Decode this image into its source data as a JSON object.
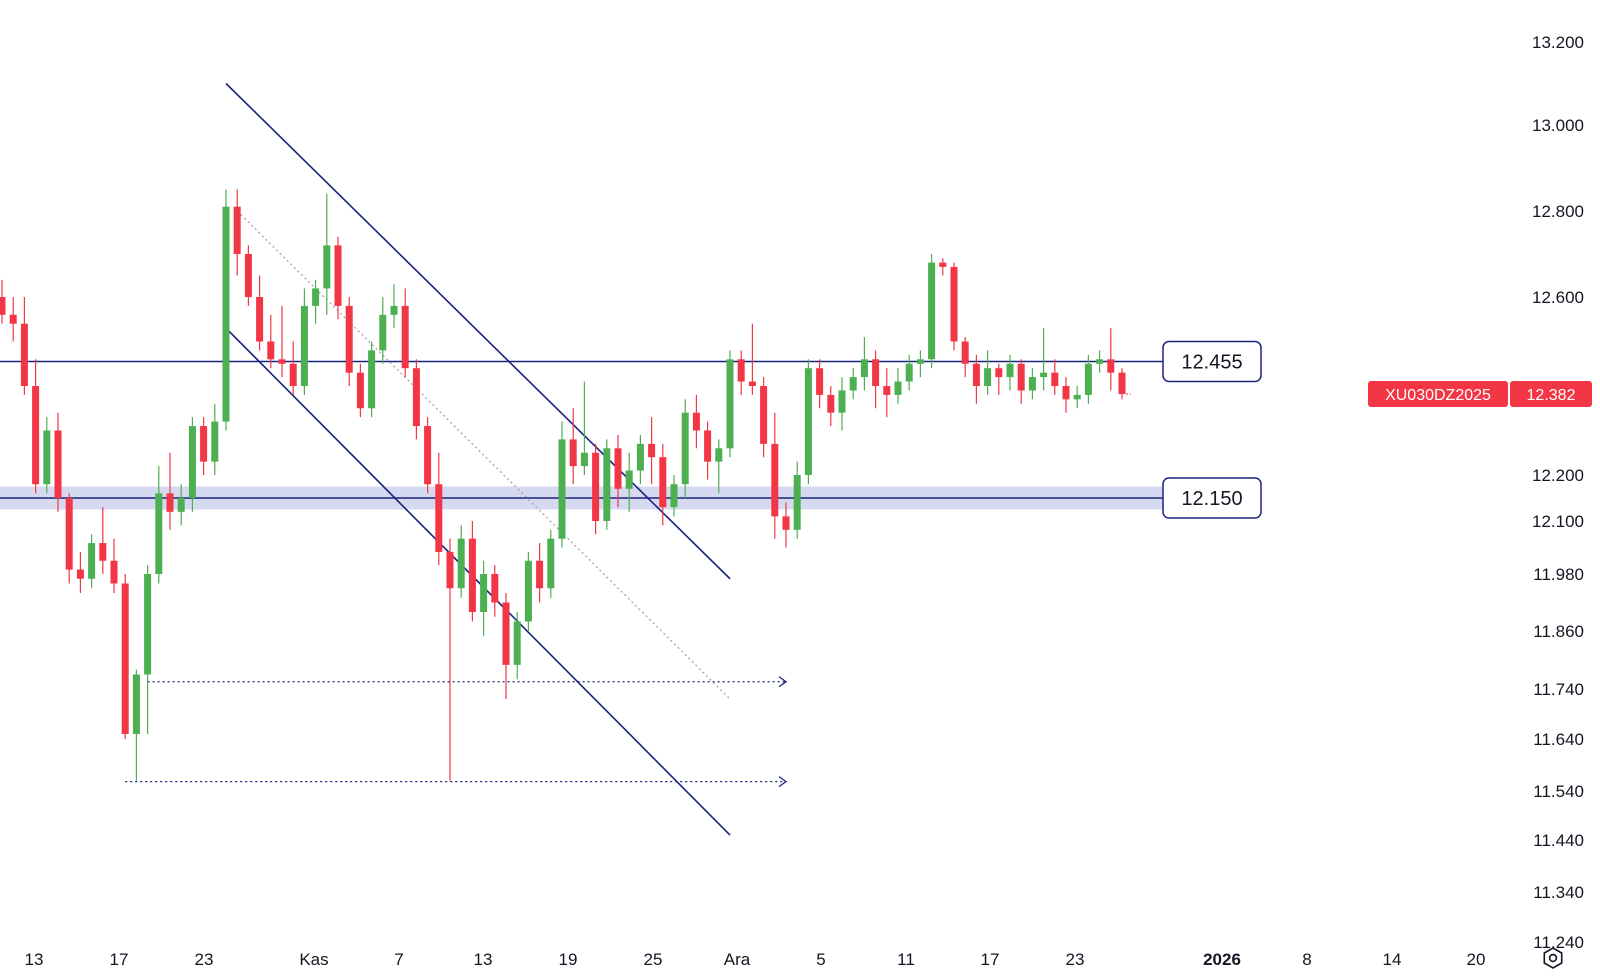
{
  "chart_data": {
    "type": "candlestick",
    "symbol": "XU030DZ2025",
    "last_price_label": "12.382",
    "last_price": 12382,
    "colors": {
      "up": "#4caf50",
      "down": "#f23645",
      "line": "#1a237e",
      "zone": "#c5cae9",
      "tag_bg": "#f23645"
    },
    "y_axis": {
      "ticks": [
        {
          "label": "13.200",
          "value": 13200
        },
        {
          "label": "13.000",
          "value": 13000
        },
        {
          "label": "12.800",
          "value": 12800
        },
        {
          "label": "12.600",
          "value": 12600
        },
        {
          "label": "12.200",
          "value": 12200
        },
        {
          "label": "12.100",
          "value": 12100
        },
        {
          "label": "11.980",
          "value": 11980
        },
        {
          "label": "11.860",
          "value": 11860
        },
        {
          "label": "11.740",
          "value": 11740
        },
        {
          "label": "11.640",
          "value": 11640
        },
        {
          "label": "11.540",
          "value": 11540
        },
        {
          "label": "11.440",
          "value": 11440
        },
        {
          "label": "11.340",
          "value": 11340
        },
        {
          "label": "11.240",
          "value": 11240
        }
      ]
    },
    "x_axis": {
      "ticks": [
        {
          "label": "13",
          "bold": false
        },
        {
          "label": "17",
          "bold": false
        },
        {
          "label": "23",
          "bold": false
        },
        {
          "label": "Kas",
          "bold": false
        },
        {
          "label": "7",
          "bold": false
        },
        {
          "label": "13",
          "bold": false
        },
        {
          "label": "19",
          "bold": false
        },
        {
          "label": "25",
          "bold": false
        },
        {
          "label": "Ara",
          "bold": false
        },
        {
          "label": "5",
          "bold": false
        },
        {
          "label": "11",
          "bold": false
        },
        {
          "label": "17",
          "bold": false
        },
        {
          "label": "23",
          "bold": false
        },
        {
          "label": "2026",
          "bold": true
        },
        {
          "label": "8",
          "bold": false
        },
        {
          "label": "14",
          "bold": false
        },
        {
          "label": "20",
          "bold": false
        }
      ]
    },
    "horizontal_levels": [
      {
        "label": "12.455",
        "value": 12455,
        "zone": false
      },
      {
        "label": "12.150",
        "value": 12150,
        "zone": true,
        "zone_low": 12125,
        "zone_high": 12175
      }
    ],
    "candles": [
      [
        12600,
        12640,
        12540,
        12560
      ],
      [
        12560,
        12600,
        12500,
        12540
      ],
      [
        12540,
        12600,
        12380,
        12400
      ],
      [
        12400,
        12460,
        12160,
        12180
      ],
      [
        12180,
        12330,
        12160,
        12300
      ],
      [
        12300,
        12340,
        12120,
        12150
      ],
      [
        12150,
        12160,
        11960,
        11990
      ],
      [
        11990,
        12030,
        11940,
        11970
      ],
      [
        11970,
        12070,
        11950,
        12050
      ],
      [
        12050,
        12130,
        11980,
        12010
      ],
      [
        12010,
        12060,
        11940,
        11960
      ],
      [
        11960,
        11980,
        11640,
        11650
      ],
      [
        11650,
        11780,
        11560,
        11770
      ],
      [
        11770,
        12000,
        11650,
        11980
      ],
      [
        11980,
        12220,
        11960,
        12160
      ],
      [
        12160,
        12250,
        12080,
        12120
      ],
      [
        12120,
        12180,
        12090,
        12150
      ],
      [
        12150,
        12330,
        12120,
        12310
      ],
      [
        12310,
        12330,
        12200,
        12230
      ],
      [
        12230,
        12360,
        12200,
        12320
      ],
      [
        12320,
        12850,
        12300,
        12810
      ],
      [
        12810,
        12850,
        12650,
        12700
      ],
      [
        12700,
        12720,
        12580,
        12600
      ],
      [
        12600,
        12650,
        12480,
        12500
      ],
      [
        12500,
        12560,
        12440,
        12460
      ],
      [
        12460,
        12580,
        12420,
        12450
      ],
      [
        12450,
        12500,
        12380,
        12400
      ],
      [
        12400,
        12620,
        12380,
        12580
      ],
      [
        12580,
        12640,
        12540,
        12620
      ],
      [
        12620,
        12840,
        12560,
        12720
      ],
      [
        12720,
        12740,
        12550,
        12580
      ],
      [
        12580,
        12600,
        12400,
        12430
      ],
      [
        12430,
        12450,
        12330,
        12350
      ],
      [
        12350,
        12500,
        12330,
        12480
      ],
      [
        12480,
        12600,
        12450,
        12560
      ],
      [
        12560,
        12630,
        12530,
        12580
      ],
      [
        12580,
        12620,
        12420,
        12440
      ],
      [
        12440,
        12460,
        12280,
        12310
      ],
      [
        12310,
        12330,
        12160,
        12180
      ],
      [
        12180,
        12250,
        12000,
        12030
      ],
      [
        12030,
        12060,
        11560,
        11950
      ],
      [
        11950,
        12090,
        11930,
        12060
      ],
      [
        12060,
        12100,
        11880,
        11900
      ],
      [
        11900,
        12010,
        11850,
        11980
      ],
      [
        11980,
        12000,
        11890,
        11920
      ],
      [
        11920,
        11940,
        11720,
        11790
      ],
      [
        11790,
        11900,
        11760,
        11880
      ],
      [
        11880,
        12030,
        11860,
        12010
      ],
      [
        12010,
        12050,
        11920,
        11950
      ],
      [
        11950,
        12080,
        11930,
        12060
      ],
      [
        12060,
        12320,
        12040,
        12280
      ],
      [
        12280,
        12350,
        12180,
        12220
      ],
      [
        12220,
        12410,
        12200,
        12250
      ],
      [
        12250,
        12270,
        12070,
        12100
      ],
      [
        12100,
        12280,
        12080,
        12260
      ],
      [
        12260,
        12290,
        12130,
        12170
      ],
      [
        12170,
        12250,
        12120,
        12210
      ],
      [
        12210,
        12290,
        12180,
        12270
      ],
      [
        12270,
        12330,
        12180,
        12240
      ],
      [
        12240,
        12270,
        12090,
        12130
      ],
      [
        12130,
        12200,
        12110,
        12180
      ],
      [
        12180,
        12370,
        12150,
        12340
      ],
      [
        12340,
        12380,
        12260,
        12300
      ],
      [
        12300,
        12320,
        12190,
        12230
      ],
      [
        12230,
        12280,
        12160,
        12260
      ],
      [
        12260,
        12480,
        12240,
        12460
      ],
      [
        12460,
        12480,
        12380,
        12410
      ],
      [
        12410,
        12540,
        12380,
        12400
      ],
      [
        12400,
        12420,
        12240,
        12270
      ],
      [
        12270,
        12340,
        12060,
        12110
      ],
      [
        12110,
        12140,
        12040,
        12080
      ],
      [
        12080,
        12230,
        12060,
        12200
      ],
      [
        12200,
        12460,
        12180,
        12440
      ],
      [
        12440,
        12460,
        12350,
        12380
      ],
      [
        12380,
        12400,
        12310,
        12340
      ],
      [
        12340,
        12420,
        12300,
        12390
      ],
      [
        12390,
        12440,
        12370,
        12420
      ],
      [
        12420,
        12510,
        12390,
        12460
      ],
      [
        12460,
        12480,
        12350,
        12400
      ],
      [
        12400,
        12440,
        12330,
        12380
      ],
      [
        12380,
        12440,
        12360,
        12410
      ],
      [
        12410,
        12470,
        12390,
        12450
      ],
      [
        12450,
        12480,
        12420,
        12460
      ],
      [
        12460,
        12700,
        12440,
        12680
      ],
      [
        12680,
        12690,
        12650,
        12670
      ],
      [
        12670,
        12680,
        12480,
        12500
      ],
      [
        12500,
        12510,
        12420,
        12450
      ],
      [
        12450,
        12470,
        12360,
        12400
      ],
      [
        12400,
        12480,
        12380,
        12440
      ],
      [
        12440,
        12450,
        12380,
        12420
      ],
      [
        12420,
        12470,
        12390,
        12450
      ],
      [
        12450,
        12460,
        12360,
        12390
      ],
      [
        12390,
        12440,
        12370,
        12420
      ],
      [
        12420,
        12530,
        12390,
        12430
      ],
      [
        12430,
        12460,
        12380,
        12400
      ],
      [
        12400,
        12420,
        12340,
        12370
      ],
      [
        12370,
        12400,
        12350,
        12380
      ],
      [
        12380,
        12470,
        12360,
        12450
      ],
      [
        12450,
        12480,
        12430,
        12460
      ],
      [
        12460,
        12530,
        12390,
        12430
      ],
      [
        12430,
        12440,
        12370,
        12382
      ]
    ],
    "trendlines": [
      {
        "style": "solid",
        "x1": 20,
        "y1": 13100,
        "x2": 65,
        "y2": 11970
      },
      {
        "style": "solid",
        "x1": 20,
        "y1": 12530,
        "x2": 65,
        "y2": 11450
      },
      {
        "style": "dotted",
        "x1": 21,
        "y1": 12800,
        "x2": 65,
        "y2": 11720
      }
    ],
    "arrows": [
      {
        "x1": 13,
        "x2": 70,
        "y": 11755
      },
      {
        "x1": 11,
        "x2": 70,
        "y": 11558
      }
    ]
  }
}
